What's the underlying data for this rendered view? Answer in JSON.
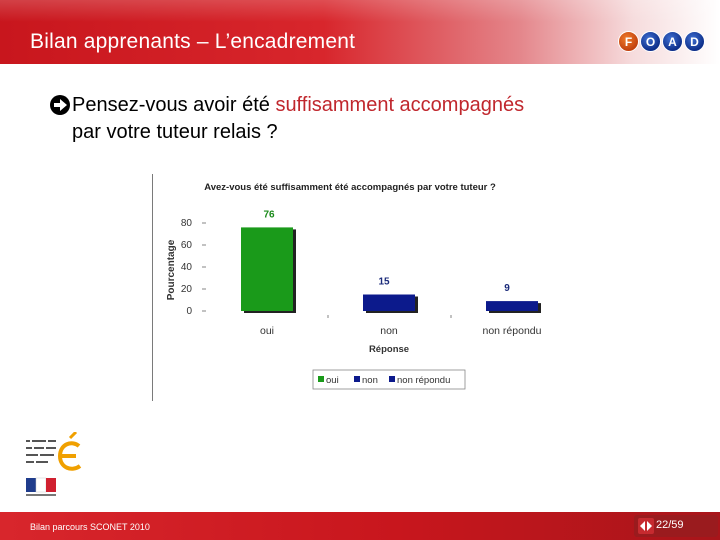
{
  "header": {
    "title": "Bilan apprenants – L’encadrement",
    "logo_letters": [
      "F",
      "O",
      "A",
      "D"
    ]
  },
  "question": {
    "prefix": "Pensez-vous avoir été ",
    "highlight": "suffisamment accompagnés",
    "line2": "par votre tuteur relais ?"
  },
  "chart_data": {
    "type": "bar",
    "title": "Avez-vous été suffisamment été accompagnés par votre tuteur ?",
    "xlabel": "Réponse",
    "ylabel": "Pourcentage",
    "categories": [
      "oui",
      "non",
      "non répondu"
    ],
    "values": [
      76,
      15,
      9
    ],
    "colors": [
      "#1a9a1a",
      "#0c1a8c",
      "#0c1a8c"
    ],
    "ylim": [
      0,
      80
    ],
    "yticks": [
      0,
      20,
      40,
      60,
      80
    ],
    "ytick_labels": [
      "0",
      "20",
      "40",
      "60",
      "80"
    ],
    "grid": false,
    "legend": {
      "placement": "bottom",
      "entries": [
        {
          "label": "oui",
          "color": "#1a9a1a"
        },
        {
          "label": "non",
          "color": "#0c1a8c"
        },
        {
          "label": "non répondu",
          "color": "#0c1a8c"
        }
      ]
    }
  },
  "footer": {
    "source": "Bilan parcours SCONET 2010",
    "page": "22/59"
  },
  "colors": {
    "header_red": "#c8161d",
    "highlight_red": "#c0272d",
    "footer_red": "#9a1b1e"
  }
}
